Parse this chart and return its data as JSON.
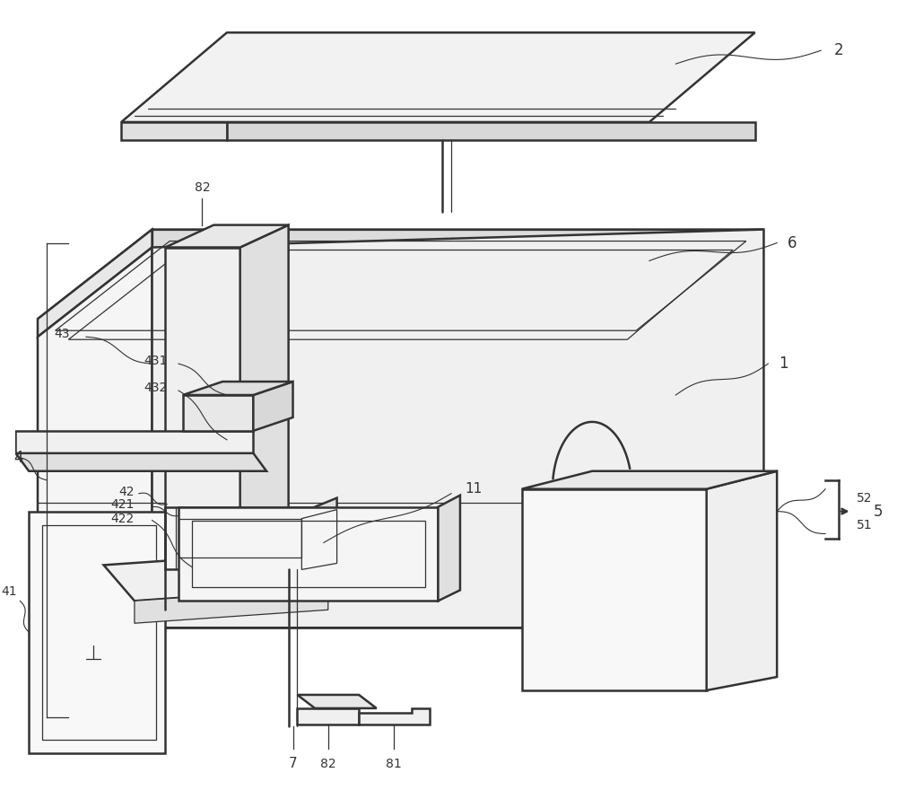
{
  "bg_color": "#ffffff",
  "line_color": "#333333",
  "lw_main": 1.8,
  "lw_thin": 0.9,
  "lw_label": 0.8
}
